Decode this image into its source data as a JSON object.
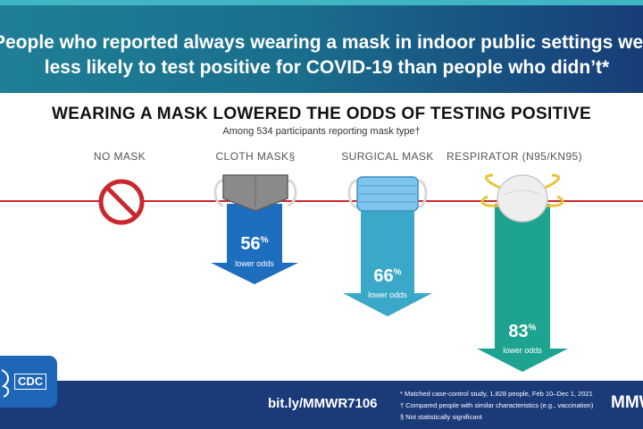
{
  "header": {
    "line1": "People who reported always wearing a mask in indoor public settings were",
    "line2": "less likely to test positive for COVID-19 than people who didn’t*"
  },
  "subtitle": "WEARING A MASK LOWERED THE ODDS OF TESTING POSITIVE",
  "participants_note": "Among 534 participants reporting mask type†",
  "columns": [
    {
      "label": "NO MASK",
      "percent": null,
      "odds_label": ""
    },
    {
      "label": "CLOTH MASK§",
      "percent": "56",
      "odds_label": "lower odds"
    },
    {
      "label": "SURGICAL MASK",
      "percent": "66",
      "odds_label": "lower odds"
    },
    {
      "label": "RESPIRATOR (N95/KN95)",
      "percent": "83",
      "odds_label": "lower odds"
    }
  ],
  "percent_sign": "%",
  "footer": {
    "url": "bit.ly/MMWR7106",
    "notes": [
      "* Matched case-control study, 1,828 people, Feb 10–Dec 1, 2021",
      "† Compared people with similar characteristics (e.g., vaccination)",
      "§ Not statistically significant"
    ],
    "brand": "MMWR",
    "cdc_logo": "CDC"
  },
  "colors": {
    "header_teal": "#1f7f96",
    "footer_navy": "#1b3a7a",
    "red_line": "#d0282e",
    "cloth_arrow": "#1e6ec0",
    "surgical_arrow": "#3aa8c9",
    "respirator_arrow": "#1fa391"
  }
}
